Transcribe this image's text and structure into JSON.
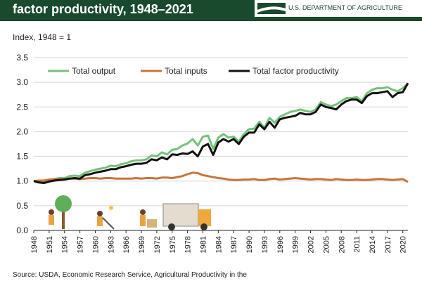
{
  "header": {
    "title": "factor productivity, 1948–2021"
  },
  "logo": {
    "text": "U.S. DEPARTMENT OF AGRICULTURE",
    "icon": "usda-logo-icon"
  },
  "footer": {
    "source": "Source: USDA, Economic Research Service, Agricultural Productivity in the"
  },
  "colors": {
    "header_bg": "#1a4a2e",
    "total_output": "#74c27a",
    "total_inputs": "#c8743a",
    "tfp": "#111111"
  },
  "illustrations": [
    "farmer-tree-icon",
    "farmer-raking-icon",
    "worker-cart-icon",
    "delivery-truck-icon"
  ],
  "chart_data": {
    "type": "line",
    "title": "",
    "ylabel": "Index, 1948 = 1",
    "xlabel": "",
    "ylim": [
      0,
      3.5
    ],
    "yticks": [
      "0.0",
      "0.5",
      "1.0",
      "1.5",
      "2.0",
      "2.5",
      "3.0",
      "3.5"
    ],
    "xtick_labels": [
      "1948",
      "1951",
      "1954",
      "1957",
      "1960",
      "1963",
      "1966",
      "1969",
      "1972",
      "1975",
      "1978",
      "1981",
      "1984",
      "1987",
      "1990",
      "1993",
      "1996",
      "1999",
      "2002",
      "2005",
      "2008",
      "2011",
      "2014",
      "2017",
      "2020"
    ],
    "grid": "horizontal",
    "legend": "top-left",
    "x": [
      1948,
      1949,
      1950,
      1951,
      1952,
      1953,
      1954,
      1955,
      1956,
      1957,
      1958,
      1959,
      1960,
      1961,
      1962,
      1963,
      1964,
      1965,
      1966,
      1967,
      1968,
      1969,
      1970,
      1971,
      1972,
      1973,
      1974,
      1975,
      1976,
      1977,
      1978,
      1979,
      1980,
      1981,
      1982,
      1983,
      1984,
      1985,
      1986,
      1987,
      1988,
      1989,
      1990,
      1991,
      1992,
      1993,
      1994,
      1995,
      1996,
      1997,
      1998,
      1999,
      2000,
      2001,
      2002,
      2003,
      2004,
      2005,
      2006,
      2007,
      2008,
      2009,
      2010,
      2011,
      2012,
      2013,
      2014,
      2015,
      2016,
      2017,
      2018,
      2019,
      2020,
      2021
    ],
    "series": [
      {
        "name": "Total output",
        "values": [
          1.0,
          0.99,
          0.98,
          1.01,
          1.04,
          1.06,
          1.06,
          1.1,
          1.11,
          1.1,
          1.17,
          1.2,
          1.23,
          1.25,
          1.27,
          1.31,
          1.3,
          1.34,
          1.36,
          1.4,
          1.42,
          1.42,
          1.44,
          1.52,
          1.5,
          1.58,
          1.54,
          1.63,
          1.65,
          1.72,
          1.76,
          1.85,
          1.72,
          1.9,
          1.92,
          1.65,
          1.88,
          1.95,
          1.88,
          1.9,
          1.8,
          1.95,
          2.05,
          2.06,
          2.2,
          2.08,
          2.28,
          2.18,
          2.3,
          2.35,
          2.4,
          2.42,
          2.45,
          2.42,
          2.4,
          2.45,
          2.6,
          2.55,
          2.52,
          2.55,
          2.62,
          2.68,
          2.68,
          2.7,
          2.62,
          2.78,
          2.85,
          2.88,
          2.88,
          2.9,
          2.85,
          2.82,
          2.88,
          2.98
        ]
      },
      {
        "name": "Total inputs",
        "values": [
          1.0,
          1.01,
          1.01,
          1.03,
          1.04,
          1.04,
          1.04,
          1.05,
          1.05,
          1.04,
          1.05,
          1.06,
          1.06,
          1.05,
          1.06,
          1.06,
          1.05,
          1.05,
          1.05,
          1.05,
          1.06,
          1.05,
          1.06,
          1.06,
          1.05,
          1.07,
          1.07,
          1.06,
          1.08,
          1.1,
          1.14,
          1.17,
          1.16,
          1.12,
          1.1,
          1.08,
          1.06,
          1.05,
          1.03,
          1.02,
          1.02,
          1.03,
          1.03,
          1.04,
          1.02,
          1.02,
          1.04,
          1.05,
          1.03,
          1.04,
          1.05,
          1.06,
          1.05,
          1.04,
          1.03,
          1.04,
          1.04,
          1.03,
          1.02,
          1.04,
          1.03,
          1.02,
          1.02,
          1.03,
          1.02,
          1.02,
          1.03,
          1.04,
          1.04,
          1.03,
          1.02,
          1.03,
          1.04,
          0.98
        ]
      },
      {
        "name": "Total factor productivity",
        "values": [
          1.0,
          0.97,
          0.96,
          0.99,
          1.01,
          1.02,
          1.03,
          1.05,
          1.06,
          1.05,
          1.12,
          1.14,
          1.17,
          1.19,
          1.21,
          1.24,
          1.24,
          1.28,
          1.3,
          1.33,
          1.35,
          1.35,
          1.37,
          1.44,
          1.42,
          1.48,
          1.44,
          1.54,
          1.53,
          1.56,
          1.55,
          1.6,
          1.5,
          1.7,
          1.75,
          1.53,
          1.78,
          1.85,
          1.8,
          1.85,
          1.75,
          1.9,
          1.98,
          1.98,
          2.15,
          2.05,
          2.2,
          2.08,
          2.25,
          2.28,
          2.3,
          2.32,
          2.38,
          2.35,
          2.35,
          2.4,
          2.55,
          2.5,
          2.48,
          2.45,
          2.55,
          2.62,
          2.65,
          2.65,
          2.58,
          2.72,
          2.78,
          2.78,
          2.8,
          2.82,
          2.7,
          2.78,
          2.8,
          2.98
        ]
      }
    ]
  }
}
